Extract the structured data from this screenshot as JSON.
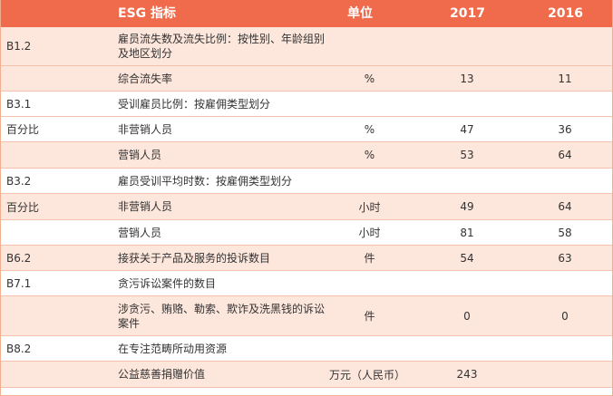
{
  "header": {
    "indicator": "ESG 指标",
    "unit": "单位",
    "y2017": "2017",
    "y2016": "2016"
  },
  "rows": [
    {
      "code": "B1.2",
      "label": "雇员流失数及流失比例：按性别、年龄组别及地区划分",
      "unit": "",
      "v2017": "",
      "v2016": "",
      "shade": true
    },
    {
      "code": "",
      "label": "综合流失率",
      "unit": "%",
      "v2017": "13",
      "v2016": "11",
      "shade": true
    },
    {
      "code": "B3.1",
      "label": "受训雇员比例：按雇佣类型划分",
      "unit": "",
      "v2017": "",
      "v2016": "",
      "shade": false
    },
    {
      "code": "百分比",
      "label": "非营销人员",
      "unit": "%",
      "v2017": "47",
      "v2016": "36",
      "shade": false
    },
    {
      "code": "",
      "label": "营销人员",
      "unit": "%",
      "v2017": "53",
      "v2016": "64",
      "shade": true
    },
    {
      "code": "B3.2",
      "label": "雇员受训平均时数：按雇佣类型划分",
      "unit": "",
      "v2017": "",
      "v2016": "",
      "shade": false
    },
    {
      "code": "百分比",
      "label": "非营销人员",
      "unit": "小时",
      "v2017": "49",
      "v2016": "64",
      "shade": true
    },
    {
      "code": "",
      "label": "营销人员",
      "unit": "小时",
      "v2017": "81",
      "v2016": "58",
      "shade": false
    },
    {
      "code": "B6.2",
      "label": "接获关于产品及服务的投诉数目",
      "unit": "件",
      "v2017": "54",
      "v2016": "63",
      "shade": true
    },
    {
      "code": "B7.1",
      "label": "贪污诉讼案件的数目",
      "unit": "",
      "v2017": "",
      "v2016": "",
      "shade": false
    },
    {
      "code": "",
      "label": "涉贪污、贿赂、勒索、欺诈及洗黑钱的诉讼案件",
      "unit": "件",
      "v2017": "0",
      "v2016": "0",
      "shade": true
    },
    {
      "code": "B8.2",
      "label": "在专注范畴所动用资源",
      "unit": "",
      "v2017": "",
      "v2016": "",
      "shade": false
    },
    {
      "code": "",
      "label": "公益慈善捐赠价值",
      "unit": "万元（人民币）",
      "v2017": "243",
      "v2016": "",
      "shade": true
    }
  ]
}
